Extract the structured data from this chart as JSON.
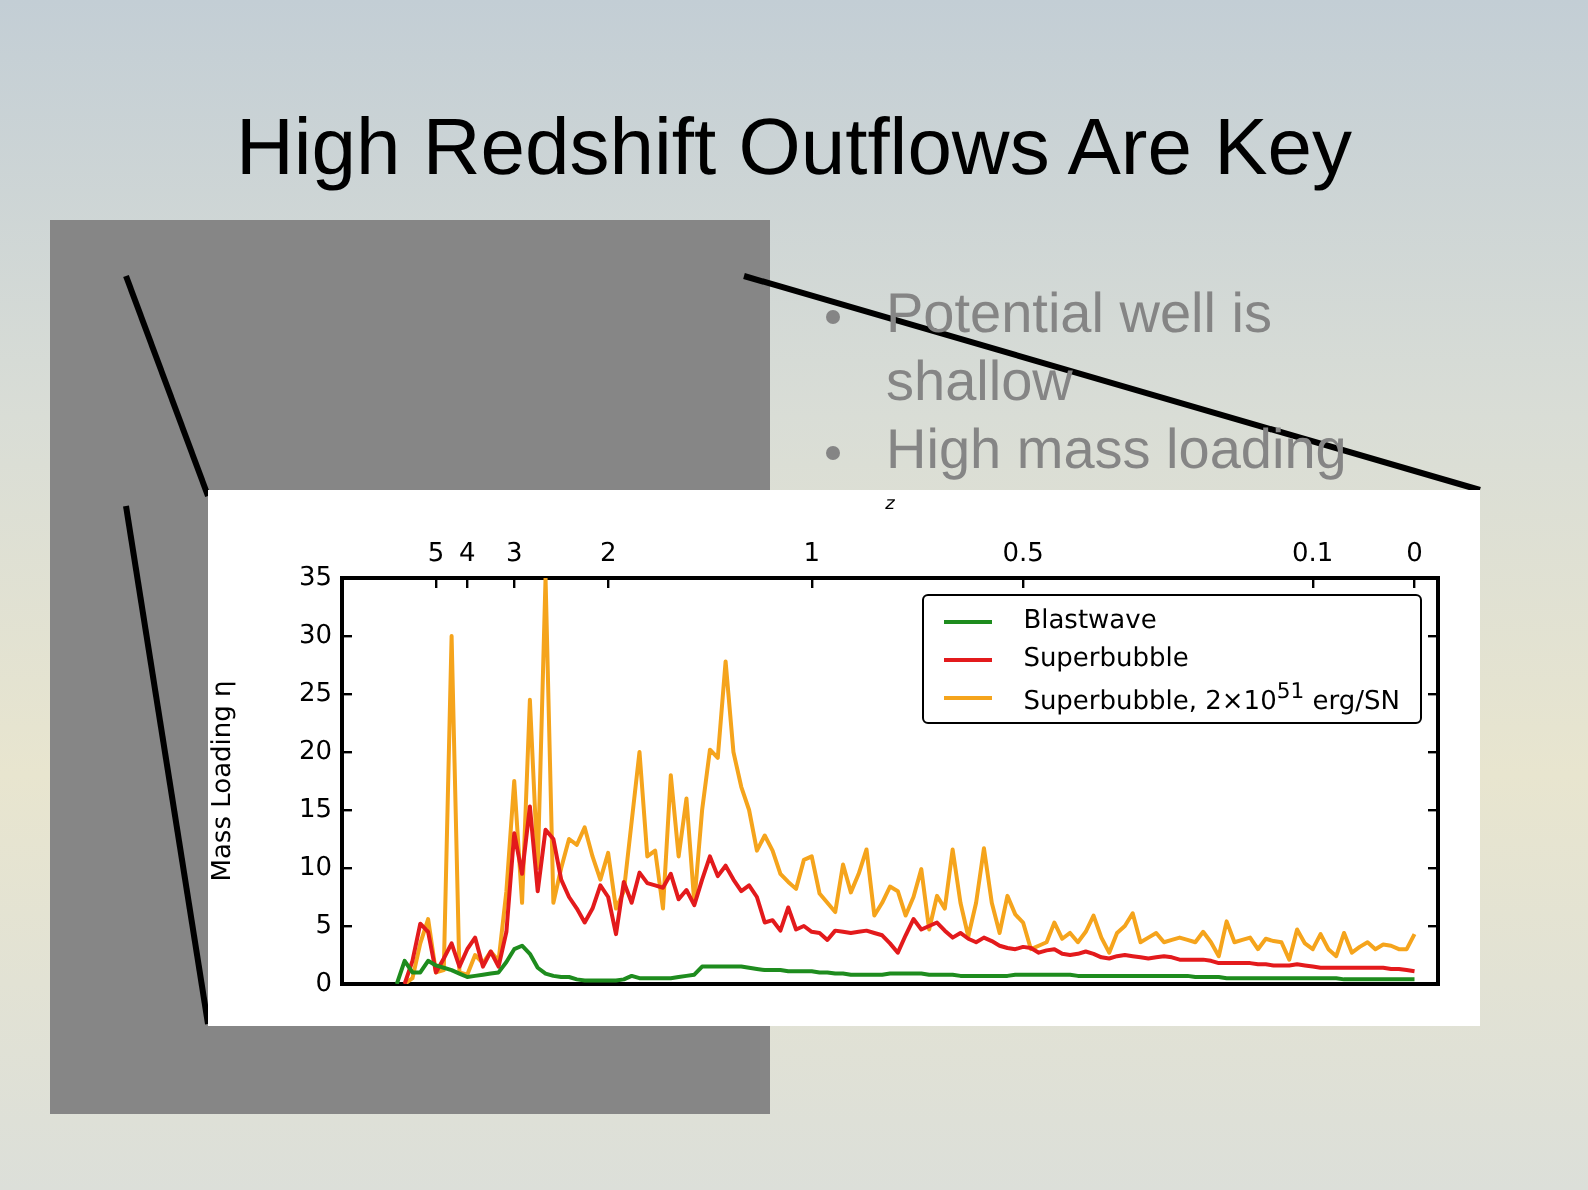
{
  "chart_data": {
    "type": "line",
    "title": "High Redshift Outflows Are Key",
    "annotations": [
      "Potential well is shallow",
      "High mass loading"
    ],
    "xlabel": "z",
    "ylabel": "Mass Loading η",
    "categories": [
      null,
      null,
      null,
      null,
      null,
      null,
      null,
      null,
      null,
      null,
      null,
      null,
      "5",
      null,
      null,
      null,
      "4",
      null,
      null,
      null,
      null,
      null,
      "3",
      null,
      null,
      null,
      null,
      null,
      null,
      null,
      null,
      null,
      null,
      null,
      "2",
      null,
      null,
      null,
      null,
      null,
      null,
      null,
      null,
      null,
      null,
      null,
      null,
      null,
      null,
      null,
      null,
      null,
      null,
      null,
      null,
      null,
      null,
      null,
      null,
      null,
      "1",
      null,
      null,
      null,
      null,
      null,
      null,
      null,
      null,
      null,
      null,
      null,
      null,
      null,
      null,
      null,
      null,
      null,
      null,
      null,
      null,
      null,
      null,
      null,
      null,
      null,
      null,
      "0.5",
      null,
      null,
      null,
      null,
      null,
      null,
      null,
      null,
      null,
      null,
      null,
      null,
      null,
      null,
      null,
      null,
      null,
      null,
      null,
      null,
      null,
      null,
      null,
      null,
      null,
      null,
      null,
      null,
      null,
      null,
      null,
      null,
      null,
      null,
      null,
      null,
      "0.1",
      null,
      null,
      null,
      null,
      null,
      null,
      null,
      null,
      null,
      null,
      null,
      null,
      "0",
      null,
      null,
      null
    ],
    "ylim": [
      0,
      35
    ],
    "yticks": [
      0,
      5,
      10,
      15,
      20,
      25,
      30,
      35
    ],
    "legend": "top right",
    "series": [
      {
        "name": "Blastwave",
        "color": "#1e8c1e",
        "values": [
          null,
          null,
          null,
          null,
          null,
          null,
          null,
          0,
          2,
          1,
          1,
          2,
          1.6,
          1.4,
          1.2,
          0.9,
          0.6,
          0.7,
          0.8,
          0.9,
          1,
          1.9,
          3,
          3.3,
          2.6,
          1.4,
          0.9,
          0.7,
          0.6,
          0.6,
          0.4,
          0.3,
          0.3,
          0.3,
          0.3,
          0.3,
          0.4,
          0.7,
          0.5,
          0.5,
          0.5,
          0.5,
          0.5,
          0.6,
          0.7,
          0.8,
          1.5,
          1.5,
          1.5,
          1.5,
          1.5,
          1.5,
          1.4,
          1.3,
          1.2,
          1.2,
          1.2,
          1.1,
          1.1,
          1.1,
          1.1,
          1,
          1,
          0.9,
          0.9,
          0.8,
          0.8,
          0.8,
          0.8,
          0.8,
          0.9,
          0.9,
          0.9,
          0.9,
          0.9,
          0.8,
          0.8,
          0.8,
          0.8,
          0.7,
          0.7,
          0.7,
          0.7,
          0.7,
          0.7,
          0.7,
          0.8,
          0.8,
          0.8,
          0.8,
          0.8,
          0.8,
          0.8,
          0.8,
          0.7,
          0.7,
          0.7,
          0.7,
          0.7,
          0.7,
          0.7,
          0.7,
          0.7,
          0.7,
          0.7,
          0.7,
          0.7,
          0.7,
          0.7,
          0.6,
          0.6,
          0.6,
          0.6,
          0.5,
          0.5,
          0.5,
          0.5,
          0.5,
          0.5,
          0.5,
          0.5,
          0.5,
          0.5,
          0.5,
          0.5,
          0.5,
          0.5,
          0.5,
          0.4,
          0.4,
          0.4,
          0.4,
          0.4,
          0.4,
          0.4,
          0.4,
          0.4,
          0.4,
          null,
          null,
          null
        ]
      },
      {
        "name": "Superbubble",
        "color": "#e31a1c",
        "values": [
          null,
          null,
          null,
          null,
          null,
          null,
          null,
          null,
          0,
          2,
          5.2,
          4.5,
          1,
          2.2,
          3.5,
          1.5,
          3,
          4,
          1.5,
          2.8,
          1.5,
          4.5,
          13,
          9.5,
          15.3,
          8,
          13.3,
          12.5,
          9,
          7.5,
          6.5,
          5.3,
          6.5,
          8.5,
          7.5,
          4.3,
          8.8,
          7,
          9.6,
          8.7,
          8.5,
          8.3,
          9.5,
          7.3,
          8.1,
          6.8,
          9,
          11,
          9.3,
          10.2,
          9,
          8,
          8.5,
          7.5,
          5.3,
          5.5,
          4.6,
          6.6,
          4.7,
          5,
          4.5,
          4.4,
          3.8,
          4.6,
          4.5,
          4.4,
          4.5,
          4.6,
          4.4,
          4.2,
          3.5,
          2.7,
          4.2,
          5.6,
          4.7,
          5,
          5.3,
          4.6,
          4,
          4.4,
          3.9,
          3.6,
          4,
          3.7,
          3.3,
          3.1,
          3,
          3.2,
          3.1,
          2.7,
          2.9,
          3,
          2.6,
          2.5,
          2.6,
          2.8,
          2.6,
          2.3,
          2.2,
          2.4,
          2.5,
          2.4,
          2.3,
          2.2,
          2.3,
          2.4,
          2.3,
          2.1,
          2.1,
          2.1,
          2.1,
          2,
          1.8,
          1.8,
          1.8,
          1.8,
          1.8,
          1.7,
          1.7,
          1.6,
          1.6,
          1.6,
          1.7,
          1.6,
          1.5,
          1.4,
          1.4,
          1.4,
          1.4,
          1.4,
          1.4,
          1.4,
          1.4,
          1.4,
          1.3,
          1.3,
          1.2,
          1.1,
          null,
          null,
          null
        ]
      },
      {
        "name": "Superbubble, 2×10$^{51}$ erg/SN",
        "color": "#f5a41c",
        "values": [
          null,
          null,
          null,
          null,
          null,
          null,
          null,
          null,
          0,
          0.5,
          3.5,
          5.6,
          1,
          1.2,
          30,
          1,
          0.8,
          2.5,
          1.8,
          2.8,
          2,
          8,
          17.5,
          7,
          24.5,
          10,
          35,
          7,
          10,
          12.5,
          12,
          13.5,
          11,
          9,
          11.3,
          6.5,
          8,
          14,
          20,
          11,
          11.5,
          6.5,
          18,
          11,
          16,
          7,
          15,
          20.2,
          19.5,
          27.8,
          20,
          17,
          15,
          11.5,
          12.8,
          11.5,
          9.5,
          8.8,
          8.2,
          10.7,
          11,
          7.8,
          7,
          6.2,
          10.3,
          7.9,
          9.5,
          11.6,
          5.9,
          7,
          8.4,
          8,
          5.9,
          7.5,
          9.9,
          4.7,
          7.6,
          6.5,
          11.6,
          7,
          4.1,
          7,
          11.7,
          7,
          4.4,
          7.6,
          6,
          5.3,
          3,
          3.3,
          3.6,
          5.3,
          3.9,
          4.4,
          3.6,
          4.5,
          5.9,
          4,
          2.7,
          4.4,
          5,
          6.1,
          3.6,
          4,
          4.4,
          3.6,
          3.8,
          4,
          3.8,
          3.6,
          4.5,
          3.6,
          2.4,
          5.4,
          3.6,
          3.8,
          4,
          3,
          3.9,
          3.7,
          3.6,
          2.1,
          4.7,
          3.5,
          3,
          4.3,
          3,
          2.4,
          4.4,
          2.7,
          3.2,
          3.6,
          3,
          3.4,
          3.3,
          3,
          3,
          4.3,
          null,
          null,
          null
        ]
      }
    ]
  }
}
